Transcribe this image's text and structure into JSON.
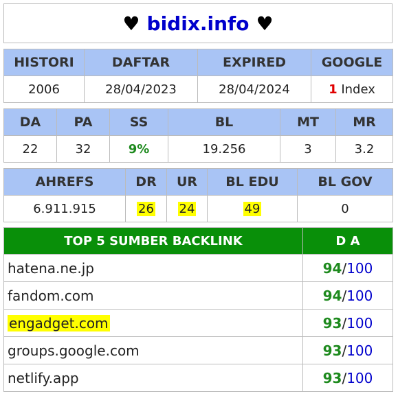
{
  "header": {
    "heart_left": "♥",
    "site": "bidix.info",
    "heart_right": "♥"
  },
  "table1": {
    "headers": [
      "HISTORI",
      "DAFTAR",
      "EXPIRED",
      "GOOGLE"
    ],
    "histori": "2006",
    "daftar": "28/04/2023",
    "expired": "28/04/2024",
    "google_count": "1",
    "google_label": "Index"
  },
  "table2": {
    "headers": [
      "DA",
      "PA",
      "SS",
      "BL",
      "MT",
      "MR"
    ],
    "values": [
      "22",
      "32",
      "9%",
      "19.256",
      "3",
      "3.2"
    ]
  },
  "table3": {
    "headers": [
      "AHREFS",
      "DR",
      "UR",
      "BL EDU",
      "BL GOV"
    ],
    "values": [
      "6.911.915",
      "26",
      "24",
      "49",
      "0"
    ]
  },
  "backlinks": {
    "header_site": "TOP 5 SUMBER BACKLINK",
    "header_da": "D A",
    "rows": [
      {
        "site": "hatena.ne.jp",
        "score": "94",
        "max": "100"
      },
      {
        "site": "fandom.com",
        "score": "94",
        "max": "100"
      },
      {
        "site": "engadget.com",
        "score": "93",
        "max": "100"
      },
      {
        "site": "groups.google.com",
        "score": "93",
        "max": "100"
      },
      {
        "site": "netlify.app",
        "score": "93",
        "max": "100"
      }
    ]
  },
  "colors": {
    "header_blue": "#a9c4f5",
    "header_green": "#098f09",
    "score_green": "#1e8a1e",
    "link_blue": "#0000cc",
    "highlight": "#ffff00",
    "google_red": "#e00000"
  }
}
